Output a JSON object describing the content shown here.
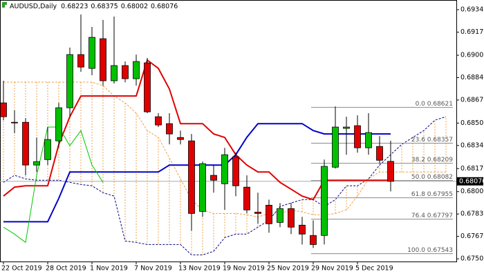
{
  "chart_data": {
    "type": "candlestick",
    "title": "AUDUSD,Daily",
    "ohlc_header": {
      "open": 0.68223,
      "high": 0.68375,
      "low": 0.68002,
      "close": 0.68076
    },
    "categories": [
      "22 Oct 2019",
      null,
      null,
      null,
      "28 Oct 2019",
      null,
      null,
      null,
      "1 Nov 2019",
      null,
      null,
      null,
      "7 Nov 2019",
      null,
      null,
      null,
      "13 Nov 2019",
      null,
      null,
      null,
      "19 Nov 2019",
      null,
      null,
      null,
      "25 Nov 2019",
      null,
      null,
      null,
      "29 Nov 2019",
      null,
      null,
      null,
      "5 Dec 2019",
      null,
      null,
      null,
      null,
      null,
      null,
      null,
      null
    ],
    "ohlc": {
      "open": [
        0.68654,
        0.68511,
        0.68511,
        0.68196,
        0.68236,
        0.68374,
        0.68618,
        0.6901,
        0.68908,
        0.69127,
        0.68817,
        0.68929,
        0.68832,
        0.68949,
        0.68552,
        0.68501,
        0.68399,
        0.68374,
        0.67854,
        0.6812,
        0.68058,
        0.68257,
        0.68033,
        0.67849,
        0.679,
        0.67773,
        0.67875,
        0.67753,
        0.67677,
        0.67677,
        0.6818,
        0.68466,
        0.68486,
        0.68323,
        0.68333,
        0.68223,
        null,
        null,
        null,
        null,
        null
      ],
      "high": [
        0.68817,
        0.686,
        0.68542,
        0.68399,
        0.68476,
        0.68654,
        0.69061,
        0.69305,
        0.69214,
        0.69265,
        0.6929,
        0.68959,
        0.6901,
        0.68985,
        0.68578,
        0.68578,
        0.6845,
        0.68425,
        0.68221,
        0.68196,
        0.68323,
        0.68287,
        0.6812,
        0.67992,
        0.67941,
        0.67916,
        0.67916,
        0.67814,
        0.67788,
        0.68236,
        0.68628,
        0.68552,
        0.68562,
        0.68578,
        0.68409,
        0.68375,
        null,
        null,
        null,
        null,
        null
      ],
      "low": [
        0.68526,
        0.6843,
        0.6812,
        0.68145,
        0.68196,
        0.68323,
        0.68552,
        0.68883,
        0.68857,
        0.68781,
        0.68796,
        0.68806,
        0.68781,
        0.68578,
        0.68476,
        0.68348,
        0.68348,
        0.67712,
        0.67814,
        0.67992,
        0.67865,
        0.67966,
        0.67839,
        0.67763,
        0.67697,
        0.67738,
        0.67687,
        0.6761,
        0.67585,
        0.6761,
        0.6817,
        0.68272,
        0.68287,
        0.68272,
        0.68206,
        0.68002,
        null,
        null,
        null,
        null,
        null
      ],
      "close": [
        0.68552,
        0.68506,
        0.68196,
        0.68221,
        0.68384,
        0.68618,
        0.6901,
        0.68918,
        0.69137,
        0.68817,
        0.68929,
        0.68832,
        0.68959,
        0.68588,
        0.68491,
        0.68425,
        0.68384,
        0.67839,
        0.68206,
        0.68084,
        0.68272,
        0.68043,
        0.67865,
        0.67839,
        0.67763,
        0.67875,
        0.67738,
        0.67687,
        0.6761,
        0.68186,
        0.68476,
        0.68476,
        0.68323,
        0.68435,
        0.68231,
        0.68076,
        null,
        null,
        null,
        null,
        null
      ],
      "up_color": "#00c000",
      "down_color": "#e00000"
    },
    "lines": [
      {
        "color": "#e00000",
        "width": 2,
        "values": [
          0.67967,
          0.68033,
          0.68043,
          0.68043,
          0.68043,
          0.68348,
          0.68552,
          0.68705,
          0.68705,
          0.68705,
          0.68705,
          0.68705,
          0.68705,
          0.68969,
          0.68908,
          0.68756,
          0.68501,
          0.68501,
          0.68501,
          0.68425,
          0.68399,
          0.68272,
          0.68196,
          0.68145,
          0.68145,
          0.68068,
          0.68018,
          0.67967,
          0.67941,
          0.68084,
          0.68084,
          0.68084,
          0.68084,
          0.68084,
          0.68084,
          0.68084,
          null,
          null,
          null,
          null,
          null
        ]
      },
      {
        "color": "#0000c8",
        "width": 2,
        "values": [
          0.67778,
          0.67778,
          0.67778,
          0.67778,
          0.67778,
          0.6795,
          0.68145,
          0.68145,
          0.68145,
          0.68145,
          0.68145,
          0.68145,
          0.68145,
          0.68145,
          0.68145,
          0.68196,
          0.68196,
          0.68196,
          0.68196,
          0.68196,
          0.68196,
          0.68272,
          0.684,
          0.68501,
          0.68501,
          0.68501,
          0.68501,
          0.68501,
          0.6845,
          0.68425,
          0.68425,
          0.68425,
          0.68425,
          0.68425,
          0.68425,
          0.68425,
          null,
          null,
          null,
          null,
          null
        ]
      },
      {
        "color": "#00c800",
        "width": 1,
        "values": [
          0.67738,
          0.67687,
          0.67626,
          0.6812,
          0.68476,
          0.68476,
          0.68338,
          0.6845,
          0.68196,
          0.68068,
          null,
          null,
          null,
          null,
          null,
          null,
          null,
          null,
          null,
          null,
          null,
          null,
          null,
          null,
          null,
          null,
          null,
          null,
          null,
          null,
          null,
          null,
          null,
          null,
          null,
          null,
          null,
          null,
          null,
          null,
          null
        ]
      }
    ],
    "cloud": {
      "color_a": "#f0a040",
      "color_b": "#000080",
      "span_a": [
        0.68807,
        0.68807,
        0.68807,
        0.68807,
        0.68807,
        0.68807,
        0.68807,
        0.68807,
        0.68807,
        0.68781,
        0.68705,
        0.68654,
        0.68578,
        0.6845,
        0.68399,
        0.68247,
        0.68094,
        0.67941,
        0.67865,
        0.67839,
        0.67839,
        0.67839,
        0.67829,
        0.67814,
        0.67839,
        0.67839,
        0.67865,
        0.6785,
        0.67829,
        0.67829,
        0.67839,
        0.67865,
        0.67967,
        0.68094,
        0.68145,
        0.68145,
        0.68145,
        0.68145,
        0.68145,
        0.68145,
        0.68145
      ],
      "span_b": [
        0.68068,
        0.6812,
        0.68094,
        0.68084,
        0.68084,
        0.68084,
        0.68068,
        0.68053,
        0.68043,
        0.67992,
        0.67967,
        0.67636,
        0.67626,
        0.6761,
        0.6761,
        0.6761,
        0.6761,
        0.67534,
        0.67534,
        0.6756,
        0.67661,
        0.67687,
        0.67687,
        0.67738,
        0.67788,
        0.6789,
        0.67916,
        0.67941,
        0.67941,
        0.6789,
        0.67941,
        0.68043,
        0.68043,
        0.68094,
        0.68196,
        0.68272,
        0.68348,
        0.68399,
        0.6845,
        0.68527,
        0.68552
      ]
    },
    "fib_levels": [
      {
        "value": 0.68621,
        "label": "0.0 0.68621"
      },
      {
        "value": 0.68357,
        "label": "23.6 0.68357"
      },
      {
        "value": 0.68209,
        "label": "38.2 0.68209"
      },
      {
        "value": 0.68082,
        "label": "50.0 0.68082"
      },
      {
        "value": 0.67955,
        "label": "61.8 0.67955"
      },
      {
        "value": 0.67797,
        "label": "76.4 0.67797"
      },
      {
        "value": 0.67543,
        "label": "100.0 0.67543"
      }
    ],
    "ylim": [
      0.67485,
      0.69407
    ],
    "yticks": [
      0.69341,
      0.69175,
      0.69005,
      {
        "value": 0.6884,
        "label": "0.68840"
      },
      0.68675,
      0.68505,
      {
        "value": 0.6834,
        "label": "0.68340"
      },
      {
        "value": 0.6817,
        "label": "0.68170"
      },
      {
        "value": 0.68,
        "label": "0.68000"
      },
      0.67835,
      {
        "value": 0.6767,
        "label": "0.67670"
      },
      0.67505
    ]
  }
}
